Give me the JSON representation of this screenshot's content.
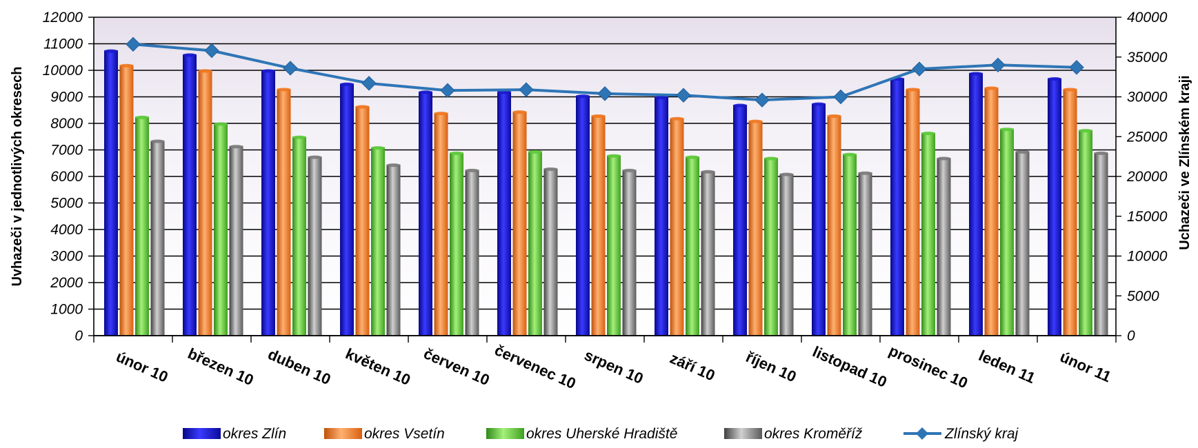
{
  "chart_data": {
    "type": "bar",
    "categories": [
      "únor 10",
      "březen 10",
      "duben 10",
      "květen 10",
      "červen 10",
      "červenec 10",
      "srpen 10",
      "září 10",
      "říjen 10",
      "listopad 10",
      "prosinec 10",
      "leden 11",
      "únor 11"
    ],
    "ylabel": "Uvhazeči v jednotlivých okresech",
    "y2label": "Uchazeči ve Zlínském kraji",
    "ylim": [
      0,
      12000
    ],
    "y2lim": [
      0,
      40000
    ],
    "yticks": [
      "0",
      "1000",
      "2000",
      "3000",
      "4000",
      "5000",
      "6000",
      "7000",
      "8000",
      "9000",
      "10000",
      "11000",
      "12000"
    ],
    "y2ticks": [
      "0",
      "5000",
      "10000",
      "15000",
      "20000",
      "25000",
      "30000",
      "35000",
      "40000"
    ],
    "grid": true,
    "legend_position": "bottom",
    "series": [
      {
        "name": "okres Zlín",
        "type": "bar",
        "axis": "left",
        "color": "#1a1acc",
        "values": [
          10750,
          10600,
          10000,
          9500,
          9200,
          9200,
          9050,
          9000,
          8700,
          8750,
          9700,
          9900,
          9700
        ]
      },
      {
        "name": "okres Vsetín",
        "type": "bar",
        "axis": "left",
        "color": "#f07820",
        "values": [
          10200,
          10000,
          9300,
          8650,
          8400,
          8450,
          8300,
          8200,
          8100,
          8300,
          9300,
          9350,
          9300
        ]
      },
      {
        "name": "okres Uherské Hradiště",
        "type": "bar",
        "axis": "left",
        "color": "#5cc83a",
        "values": [
          8250,
          8000,
          7500,
          7100,
          6900,
          6950,
          6800,
          6750,
          6700,
          6850,
          7650,
          7800,
          7750
        ]
      },
      {
        "name": "okres Kroměříž",
        "type": "bar",
        "axis": "left",
        "color": "#7a7a7a",
        "values": [
          7350,
          7150,
          6750,
          6450,
          6250,
          6300,
          6250,
          6200,
          6100,
          6150,
          6700,
          6950,
          6900
        ]
      },
      {
        "name": "Zlínský kraj",
        "type": "line",
        "axis": "right",
        "color": "#2e75b6",
        "values": [
          36600,
          35800,
          33600,
          31700,
          30800,
          30900,
          30400,
          30200,
          29600,
          30000,
          33500,
          34000,
          33700
        ]
      }
    ]
  }
}
